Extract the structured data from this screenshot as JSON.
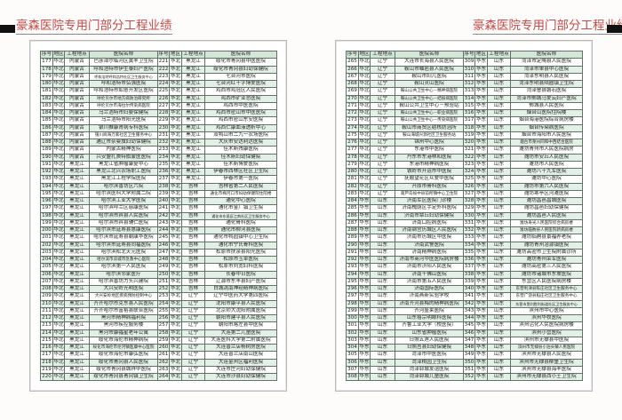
{
  "title": "豪森医院专用门部分工程业绩",
  "headers": [
    "序号",
    "地区",
    "工程地点",
    "医院名称",
    "序号",
    "地区",
    "工程地点",
    "医院名称"
  ],
  "colors": {
    "title": "#c24a48",
    "header_bg": "#d3e6d8",
    "alt_row_bg": "#e4f0e7",
    "border": "#5f7464"
  },
  "pages": [
    {
      "left": [
        [
          "177",
          "华北",
          "内蒙古",
          "巴彦淖尔临河区黄羊卫生院"
        ],
        [
          "178",
          "华北",
          "内蒙古",
          "呼和浩特市伊生泰妇产医院"
        ],
        [
          "179",
          "华北",
          "内蒙古",
          "呼和浩特呼和浩特社区卫生服务中心"
        ],
        [
          "180",
          "华北",
          "内蒙古",
          "呼和浩特市弘强医院"
        ],
        [
          "181",
          "华北",
          "内蒙古",
          "呼和浩特市如意开发区医院"
        ],
        [
          "182",
          "华北",
          "内蒙古",
          "呼伦贝尔市地方病防治研究所"
        ],
        [
          "183",
          "华北",
          "内蒙古",
          "呼伦贝尔市海拉尔传染病医院"
        ],
        [
          "184",
          "华北",
          "内蒙古",
          "乌兰浩特市妇婴保健院"
        ],
        [
          "185",
          "华北",
          "内蒙古",
          "乌兰浩特市阳光医院"
        ],
        [
          "186",
          "华北",
          "内蒙古",
          "银川推康肾病专科医院"
        ],
        [
          "187",
          "华北",
          "内蒙古",
          "银川阅海万家社区卫生服务中心"
        ],
        [
          "188",
          "华北",
          "内蒙古",
          "通辽市奈曼旗妇幼保健院"
        ],
        [
          "189",
          "华北",
          "内蒙古",
          "内蒙古精神医院"
        ],
        [
          "190",
          "华北",
          "内蒙古",
          "兴安盟扎赉特旗蒙医医院"
        ],
        [
          "191",
          "华北",
          "黑龙江",
          "黑龙江省肿瘤康复中心"
        ],
        [
          "192",
          "华北",
          "黑龙江",
          "黑龙江北兴农场职工医院"
        ],
        [
          "193",
          "华北",
          "黑龙江",
          "黑龙江工程学院医院"
        ],
        [
          "194",
          "华北",
          "黑龙江",
          "哈尔滨香坊区六院"
        ],
        [
          "195",
          "华北",
          "黑龙江",
          "哈尔滨医科大学附属二院"
        ],
        [
          "196",
          "华北",
          "黑龙江",
          "哈尔滨工业大学医院"
        ],
        [
          "197",
          "华北",
          "黑龙江",
          "哈尔滨呼兰区慈康医院"
        ],
        [
          "198",
          "华北",
          "黑龙江",
          "哈尔滨市宾县人民医院"
        ],
        [
          "199",
          "华北",
          "黑龙江",
          "哈尔滨市宾县辅仁医院"
        ],
        [
          "200",
          "华北",
          "黑龙江",
          "哈尔滨市延寿县惠康医院"
        ],
        [
          "201",
          "华北",
          "黑龙江",
          "哈尔滨市延寿县朝康华医院"
        ],
        [
          "202",
          "华北",
          "黑龙江",
          "哈尔滨市延寿县同福医院"
        ],
        [
          "203",
          "华北",
          "黑龙江",
          "哈尔滨松北天元医院"
        ],
        [
          "204",
          "华北",
          "黑龙江",
          "哈尔滨市双城市急救中心医院"
        ],
        [
          "205",
          "华北",
          "黑龙江",
          "哈尔滨第一人民医院"
        ],
        [
          "206",
          "华北",
          "黑龙江",
          "哈尔滨邻家医疗"
        ],
        [
          "207",
          "华北",
          "黑龙江",
          "哈尔滨香坊力头兴建院"
        ],
        [
          "208",
          "华北",
          "黑龙江",
          "大兴安岭光明医院"
        ],
        [
          "209",
          "华北",
          "黑龙江",
          "大兴安岭地区疾病预防控制中心"
        ],
        [
          "210",
          "华北",
          "黑龙江",
          "齐齐哈尔市克东县人民医院"
        ],
        [
          "211",
          "华北",
          "黑龙江",
          "齐齐哈尔市富裕县联合医院"
        ],
        [
          "212",
          "华北",
          "黑龙江",
          "黑河市精神病福利院"
        ],
        [
          "213",
          "华北",
          "黑龙江",
          "黑河市疾控服务楼"
        ],
        [
          "214",
          "华北",
          "黑龙江",
          "黑河市康福星老年公寓"
        ],
        [
          "215",
          "华北",
          "黑龙江",
          "绥化市海伦市精神病院"
        ],
        [
          "216",
          "华北",
          "黑龙江",
          "绥化市海伦市伦河镇医康中心医院"
        ],
        [
          "217",
          "华北",
          "黑龙江",
          "绥化市海伦市康弘医院"
        ],
        [
          "218",
          "华北",
          "黑龙江",
          "绥化市青冈县人民医院"
        ],
        [
          "219",
          "华北",
          "黑龙江",
          "绥化市青冈县城祥中医院"
        ],
        [
          "220",
          "华北",
          "黑龙江",
          "绥化市青冈县青冈镇卫生院"
        ]
      ],
      "right": [
        [
          "221",
          "华北",
          "黑龙江",
          "绥化市青冈县中医医院"
        ],
        [
          "222",
          "华北",
          "黑龙江",
          "绥化市青冈县妇幼保健院"
        ],
        [
          "223",
          "华北",
          "黑龙江",
          "七台河市医院"
        ],
        [
          "224",
          "华北",
          "黑龙江",
          "七台河红十字博爱医院"
        ],
        [
          "225",
          "华北",
          "黑龙江",
          "鸡西市鸡冠区人民医院"
        ],
        [
          "226",
          "华北",
          "黑龙江",
          "鸡西市矿业总医院"
        ],
        [
          "227",
          "华北",
          "黑龙江",
          "鸡西市中医医院"
        ],
        [
          "228",
          "华北",
          "黑龙江",
          "鸡西市密山市中医医院"
        ],
        [
          "229",
          "华北",
          "黑龙江",
          "鸡西市密山东安医院"
        ],
        [
          "230",
          "华北",
          "黑龙江",
          "鸡西仁康血液透析中心"
        ],
        [
          "231",
          "华北",
          "黑龙江",
          "双鸭山市二九一农场医院"
        ],
        [
          "232",
          "华北",
          "黑龙江",
          "大庆市安达利达医院"
        ],
        [
          "233",
          "华北",
          "黑龙江",
          "佳木斯残康医院"
        ],
        [
          "234",
          "华北",
          "黑龙江",
          "佳木斯妇幼保健院"
        ],
        [
          "235",
          "华北",
          "黑龙江",
          "佳木斯博爱医院"
        ],
        [
          "236",
          "华北",
          "黑龙江",
          "伊春市西林区社区卫生院"
        ],
        [
          "237",
          "华北",
          "黑龙江",
          "伊春市第一医院"
        ],
        [
          "238",
          "华北",
          "吉林",
          "吉林省第二人民医院"
        ],
        [
          "239",
          "华北",
          "吉林",
          "通化市梅河口市妇幼保健院住院楼"
        ],
        [
          "240",
          "华北",
          "吉林",
          "通化中心医院"
        ],
        [
          "241",
          "华北",
          "吉林",
          "通化市金厂镇卫生院"
        ],
        [
          "242",
          "华北",
          "吉林",
          "通化市东昌区江南社区卫生服务中心"
        ],
        [
          "243",
          "华北",
          "吉林",
          "通化骨科医院"
        ],
        [
          "244",
          "华北",
          "吉林",
          "通化市柳河县医院"
        ],
        [
          "245",
          "华北",
          "吉林",
          "通化市鸭园镇中心卫生院"
        ],
        [
          "246",
          "华北",
          "吉林",
          "通化市宁氏骨科医院"
        ],
        [
          "247",
          "华北",
          "吉林",
          "松原市扶余县阳光医院"
        ],
        [
          "248",
          "华北",
          "吉林",
          "松原市玉卓医院"
        ],
        [
          "249",
          "华北",
          "吉林",
          "松原市刘宽妇科医院"
        ],
        [
          "250",
          "华北",
          "吉林",
          "长春中日医院"
        ],
        [
          "251",
          "华北",
          "吉林",
          "辽源市东丰县妇产医院"
        ],
        [
          "252",
          "华北",
          "吉林",
          "白城洮南神经精神病医院"
        ],
        [
          "253",
          "华北",
          "辽宁",
          "辽宁中医药大学第四医院"
        ],
        [
          "254",
          "华北",
          "辽宁",
          "沈阳市康平县人民医院"
        ],
        [
          "255",
          "华北",
          "辽宁",
          "北京师大沈阳附属医院"
        ],
        [
          "256",
          "华北",
          "辽宁",
          "朝阳市建平县人民医院"
        ],
        [
          "257",
          "华北",
          "辽宁",
          "朝阳市喀左县中医院"
        ],
        [
          "258",
          "华北",
          "辽宁",
          "大连第二儿童医院"
        ],
        [
          "259",
          "华北",
          "辽宁",
          "大连医科大学第二附属医院"
        ],
        [
          "260",
          "华北",
          "辽宁",
          "大连普兰店杨树房医院"
        ],
        [
          "261",
          "华北",
          "辽宁",
          "大连普兰店南山医院"
        ],
        [
          "262",
          "华北",
          "辽宁",
          "大连金州区福利医院"
        ],
        [
          "263",
          "华北",
          "辽宁",
          "大连市庄河妇幼保健院"
        ],
        [
          "264",
          "华北",
          "辽宁",
          "大连市沙县妇幼保健院"
        ]
      ]
    },
    {
      "left": [
        [
          "265",
          "华北",
          "辽宁",
          "大连市长海县人民医院"
        ],
        [
          "266",
          "华北",
          "辽宁",
          "鞍山市岫岩县人民医院"
        ],
        [
          "267",
          "华北",
          "辽宁",
          "鞍山市妇儿医院"
        ],
        [
          "268",
          "华北",
          "辽宁",
          "鞍山灵山医院"
        ],
        [
          "269",
          "华北",
          "辽宁",
          "鞍山公共卫生中心－精神病医院"
        ],
        [
          "270",
          "华北",
          "辽宁",
          "鞍山公共卫生中心－结核病医院"
        ],
        [
          "271",
          "华北",
          "辽宁",
          "鞍山公共卫生中心－预验站"
        ],
        [
          "272",
          "华北",
          "辽宁",
          "鞍山公共卫生中心－职业病医院"
        ],
        [
          "273",
          "华北",
          "辽宁",
          "鞍山公共卫生中心－传染病医院"
        ],
        [
          "274",
          "华北",
          "辽宁",
          "鞍山市商贸区结核防治所"
        ],
        [
          "275",
          "华北",
          "辽宁",
          "鞍山海城兴源社区卫生服务站"
        ],
        [
          "276",
          "华北",
          "辽宁",
          "锦州中心医院"
        ],
        [
          "277",
          "华北",
          "辽宁",
          "东港市中医院"
        ],
        [
          "278",
          "华北",
          "辽宁",
          "丹东市东港林和医院"
        ],
        [
          "279",
          "华北",
          "辽宁",
          "东港市精神病医院"
        ],
        [
          "280",
          "华北",
          "辽宁",
          "铁岭市开运市中医院"
        ],
        [
          "281",
          "华北",
          "辽宁",
          "抚顺望花区众爱中医院"
        ],
        [
          "282",
          "华北",
          "辽宁",
          "开原市骨科医院"
        ],
        [
          "283",
          "华北",
          "辽宁",
          "葫芦岛绥中县前所镇中心卫生院"
        ],
        [
          "284",
          "华东",
          "山东",
          "济南军区医院门诊楼"
        ],
        [
          "285",
          "华东",
          "山东",
          "济南槐荫区手足外科医院"
        ],
        [
          "286",
          "华东",
          "山东",
          "济南市章丘妇幼保健院"
        ],
        [
          "287",
          "华东",
          "山东",
          "济南口腔病医院"
        ],
        [
          "288",
          "华东",
          "山东",
          "济南钢宫历城区人民医院"
        ],
        [
          "289",
          "华东",
          "山东",
          "济南市历城区中医院"
        ],
        [
          "290",
          "华东",
          "山东",
          "济南武警医院"
        ],
        [
          "291",
          "华东",
          "山东",
          "济南精神病医院"
        ],
        [
          "292",
          "华东",
          "山东",
          "济南市商河中医医院病房楼"
        ],
        [
          "293",
          "华东",
          "山东",
          "济南市济阳人民医院"
        ],
        [
          "294",
          "华东",
          "山东",
          "济南千佛山医院"
        ],
        [
          "295",
          "华东",
          "山东",
          "济南市第五人民医院"
        ],
        [
          "296",
          "华东",
          "山东",
          "济南国际医院"
        ],
        [
          "297",
          "华东",
          "山东",
          "济南燕新实验学校"
        ],
        [
          "298",
          "华东",
          "山东",
          "济南齐河县梅的精神病医院"
        ],
        [
          "299",
          "华东",
          "山东",
          "齐河盛莱医院"
        ],
        [
          "300",
          "华东",
          "山东",
          "山东禧宗明眼科医院"
        ],
        [
          "301",
          "华东",
          "山东",
          "齐鲁工业大学（校医院）"
        ],
        [
          "302",
          "华东",
          "山东",
          "山东省肿瘤医院"
        ],
        [
          "303",
          "华东",
          "山东",
          "日照五莲人民医院"
        ],
        [
          "304",
          "华东",
          "山东",
          "日照莒县妇幼保健院"
        ],
        [
          "305",
          "华东",
          "山东",
          "菏泽市中医医院"
        ],
        [
          "306",
          "华东",
          "山东",
          "菏泽桃园卫生院"
        ],
        [
          "307",
          "华东",
          "山东",
          "菏泽郓城友谊医院"
        ],
        [
          "308",
          "华东",
          "山东",
          "菏泽郓城儿童医院"
        ]
      ],
      "right": [
        [
          "309",
          "华东",
          "山东",
          "菏泽市定陶县人民医院"
        ],
        [
          "310",
          "华东",
          "山东",
          "菏泽市单县中心医院"
        ],
        [
          "311",
          "华东",
          "山东",
          "菏泽东明县人民医院"
        ],
        [
          "312",
          "华东",
          "山东",
          "菏泽东明县陆圈镇卫生院"
        ],
        [
          "313",
          "华东",
          "山东",
          "菏泽曹县磐石医院"
        ],
        [
          "314",
          "华东",
          "山东",
          "菏泽市鄄城马爱云妇产医院"
        ],
        [
          "315",
          "华东",
          "山东",
          "鄄城县人民医院"
        ],
        [
          "316",
          "华东",
          "山东",
          "烟台山医院住院楼"
        ],
        [
          "317",
          "华东",
          "山东",
          "烟台海港医院综合病房楼"
        ],
        [
          "318",
          "华东",
          "山东",
          "烟台传染病医院"
        ],
        [
          "319",
          "华东",
          "山东",
          "烟台市海阳市人民医院"
        ],
        [
          "320",
          "华东",
          "山东",
          "烟台市莱州同和中西结合医院"
        ],
        [
          "321",
          "华东",
          "山东",
          "潍坊青州市人民医院病房"
        ],
        [
          "322",
          "华东",
          "山东",
          "潍坊市安丘人民医院"
        ],
        [
          "323",
          "华东",
          "山东",
          "潍坊市人民医院"
        ],
        [
          "324",
          "华东",
          "山东",
          "潍坊八十九军医院"
        ],
        [
          "325",
          "华东",
          "山东",
          "潍坊中心医院"
        ],
        [
          "326",
          "华东",
          "山东",
          "潍坊市第六人民医院"
        ],
        [
          "327",
          "华东",
          "山东",
          "潍坊寒亭区河滩医院"
        ],
        [
          "328",
          "华东",
          "山东",
          "潍坊昌邑昌城医院"
        ],
        [
          "329",
          "华东",
          "山东",
          "潍坊昌邑妇幼保健院"
        ],
        [
          "330",
          "华东",
          "山东",
          "潍坊昌邑人民医院"
        ],
        [
          "331",
          "华东",
          "山东",
          "潍坊寿光人民医院综合病房楼"
        ],
        [
          "332",
          "华东",
          "山东",
          "潍坊临朐县人民医院新病房楼"
        ],
        [
          "333",
          "华东",
          "山东",
          "潍坊临朐县景福养老院"
        ],
        [
          "334",
          "华东",
          "山东",
          "潍坊青州冶源镇医院"
        ],
        [
          "335",
          "华东",
          "山东",
          "潍坊高密市卫生院附属诊所"
        ],
        [
          "336",
          "华东",
          "山东",
          "潍坊青州荣军医院"
        ],
        [
          "337",
          "华东",
          "山东",
          "潍坊高密第三人民医院"
        ],
        [
          "338",
          "华东",
          "山东",
          "潍坊市诸城市东坡医院"
        ],
        [
          "339",
          "华东",
          "山东",
          "东营区人民医院病房楼"
        ],
        [
          "340",
          "华东",
          "山东",
          "东营利津县陈庄社区卫生服务中心"
        ],
        [
          "341",
          "华东",
          "山东",
          "东营广饶县稻庄社区卫生服务中心"
        ],
        [
          "342",
          "华东",
          "山东",
          "东营市垦利胜利街道社区卫生服务中心"
        ],
        [
          "343",
          "华东",
          "山东",
          "滨州市中心医院"
        ],
        [
          "344",
          "华东",
          "山东",
          "滨州华牧医院"
        ],
        [
          "345",
          "华东",
          "山东",
          "滨州沾化人民医院病房楼"
        ],
        [
          "346",
          "华东",
          "山东",
          "滨州小营医院"
        ],
        [
          "347",
          "华东",
          "山东",
          "滨州市无棣县中医院"
        ],
        [
          "348",
          "华东",
          "山东",
          "滨州市无棣县小泊头镇人民医院"
        ],
        [
          "349",
          "华东",
          "山东",
          "滨州市无棣县人民医院"
        ],
        [
          "350",
          "华东",
          "山东",
          "滨州市无棣县柳堡卫生院"
        ],
        [
          "351",
          "华东",
          "山东",
          "滨州市无棣县海丰医院"
        ],
        [
          "352",
          "华东",
          "山东",
          "滨州市无棣县西小王卫生院"
        ]
      ]
    }
  ]
}
